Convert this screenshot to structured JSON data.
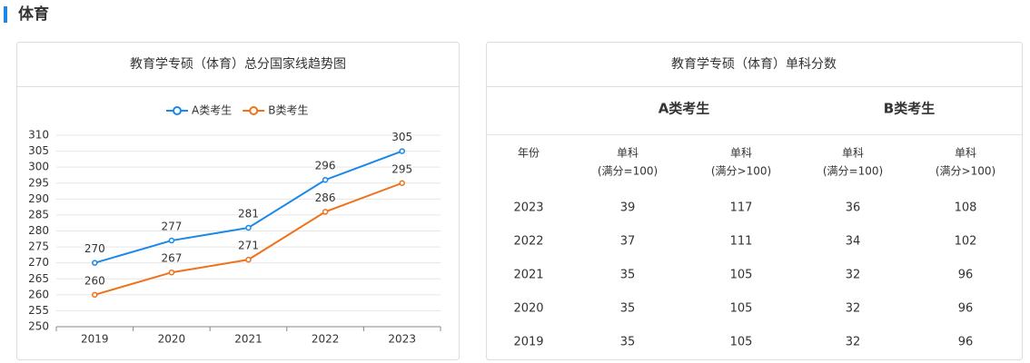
{
  "section_title": "体育",
  "chart_data": {
    "type": "line",
    "title": "教育学专硕（体育）总分国家线趋势图",
    "categories": [
      "2019",
      "2020",
      "2021",
      "2022",
      "2023"
    ],
    "series": [
      {
        "name": "A类考生",
        "color": "#1a88e8",
        "values": [
          270,
          277,
          281,
          296,
          305
        ]
      },
      {
        "name": "B类考生",
        "color": "#f0711a",
        "values": [
          260,
          267,
          271,
          286,
          295
        ]
      }
    ],
    "ylim": [
      250,
      310
    ],
    "yticks": [
      250,
      255,
      260,
      265,
      270,
      275,
      280,
      285,
      290,
      295,
      300,
      305,
      310
    ],
    "grid": true,
    "legend": "top"
  },
  "table": {
    "title": "教育学专硕（体育）单科分数",
    "groups": [
      {
        "name": "A类考生",
        "color": "#1a88e8"
      },
      {
        "name": "B类考生",
        "color": "#f0711a"
      }
    ],
    "columns": [
      [
        "年份"
      ],
      [
        "单科",
        "(满分=100)"
      ],
      [
        "单科",
        "(满分>100)"
      ],
      [
        "单科",
        "(满分=100)"
      ],
      [
        "单科",
        "(满分>100)"
      ]
    ],
    "rows": [
      [
        2023,
        39,
        117,
        36,
        108
      ],
      [
        2022,
        37,
        111,
        34,
        102
      ],
      [
        2021,
        35,
        105,
        32,
        96
      ],
      [
        2020,
        35,
        105,
        32,
        96
      ],
      [
        2019,
        35,
        105,
        32,
        96
      ]
    ]
  }
}
